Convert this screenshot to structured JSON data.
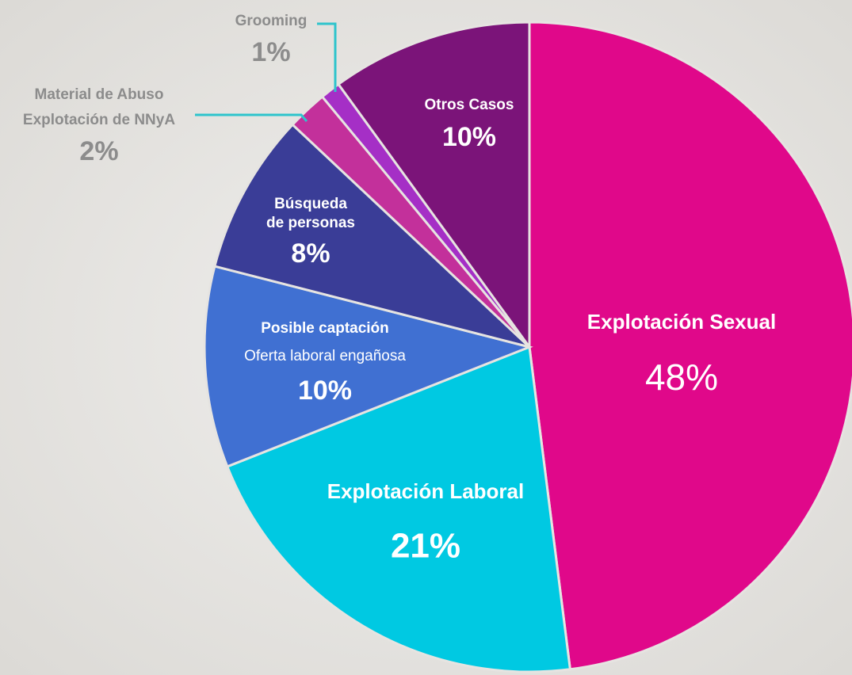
{
  "chart_data": {
    "type": "pie",
    "categories": [
      [
        "Explotación Sexual"
      ],
      [
        "Explotación Laboral"
      ],
      [
        "Posible captación",
        "Oferta laboral engañosa"
      ],
      [
        "Búsqueda",
        "de personas"
      ],
      [
        "Material de Abuso",
        "Explotación de NNyA"
      ],
      [
        "Grooming"
      ],
      [
        "Otros Casos"
      ]
    ],
    "values": [
      48,
      21,
      10,
      8,
      2,
      1,
      10
    ],
    "value_labels": [
      "48%",
      "21%",
      "10%",
      "8%",
      "2%",
      "1%",
      "10%"
    ],
    "colors": [
      "#e0088a",
      "#00c9e2",
      "#4070d2",
      "#3a3d97",
      "#c3309b",
      "#a52fc6",
      "#7b1479"
    ]
  }
}
